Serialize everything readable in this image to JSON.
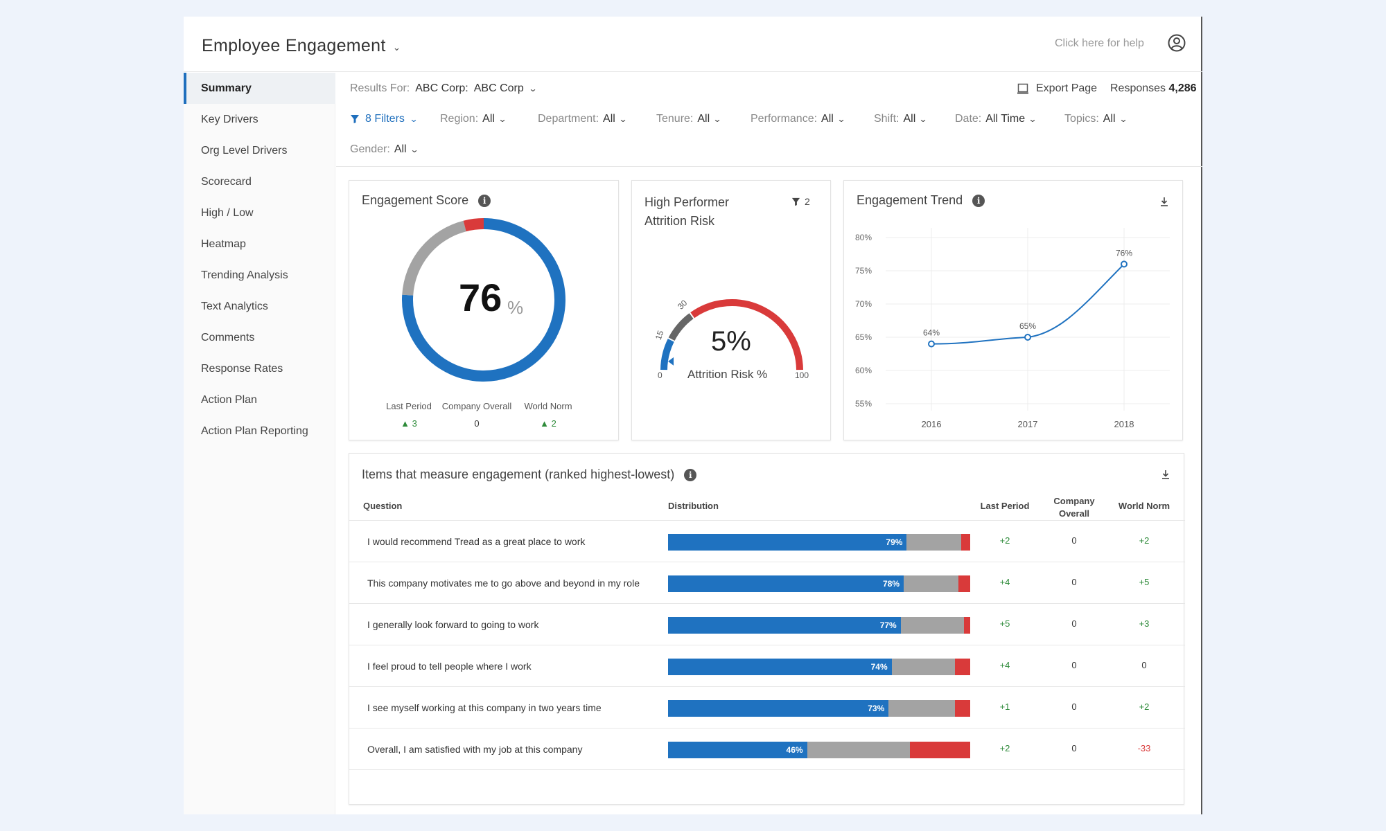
{
  "header": {
    "title": "Employee Engagement",
    "help_text": "Click here for help"
  },
  "sidebar": {
    "items": [
      {
        "label": "Summary",
        "active": true
      },
      {
        "label": "Key Drivers"
      },
      {
        "label": "Org Level Drivers"
      },
      {
        "label": "Scorecard"
      },
      {
        "label": "High / Low"
      },
      {
        "label": "Heatmap"
      },
      {
        "label": "Trending Analysis"
      },
      {
        "label": "Text Analytics"
      },
      {
        "label": "Comments"
      },
      {
        "label": "Response Rates"
      },
      {
        "label": "Action Plan"
      },
      {
        "label": "Action Plan Reporting"
      }
    ]
  },
  "filterbar": {
    "results_label": "Results For:",
    "results_value": "ABC Corp:  ABC Corp",
    "export_label": "Export Page",
    "responses_label": "Responses",
    "responses_value": "4,286",
    "filters_link": "8 Filters",
    "filters": [
      {
        "label": "Region:",
        "value": "All"
      },
      {
        "label": "Department:",
        "value": "All"
      },
      {
        "label": "Tenure:",
        "value": "All"
      },
      {
        "label": "Performance:",
        "value": "All"
      },
      {
        "label": "Shift:",
        "value": "All"
      },
      {
        "label": "Date:",
        "value": "All Time"
      },
      {
        "label": "Topics:",
        "value": "All"
      },
      {
        "label": "Gender:",
        "value": "All"
      }
    ]
  },
  "engagement_score": {
    "title": "Engagement Score",
    "value": "76",
    "unit": "%",
    "donut": {
      "positive": 76,
      "neutral": 20,
      "negative": 4
    },
    "stats": [
      {
        "label": "Last Period",
        "value": "3",
        "trend": "up"
      },
      {
        "label": "Company Overall",
        "value": "0",
        "trend": "none"
      },
      {
        "label": "World Norm",
        "value": "2",
        "trend": "up"
      }
    ],
    "colors": {
      "positive": "#1f72c0",
      "neutral": "#a3a3a3",
      "negative": "#d93a3a"
    }
  },
  "attrition": {
    "title_line1": "High Performer",
    "title_line2": "Attrition Risk",
    "filter_count": "2",
    "value": "5%",
    "label": "Attrition Risk %",
    "value_num": 5,
    "ticks": {
      "min": "0",
      "t1": "15",
      "t2": "30",
      "max": "100"
    }
  },
  "trend": {
    "title": "Engagement Trend"
  },
  "chart_data": {
    "type": "line",
    "x": [
      "2016",
      "2017",
      "2018"
    ],
    "series": [
      {
        "values": [
          64,
          65,
          76
        ]
      }
    ],
    "data_labels": [
      "64%",
      "65%",
      "76%"
    ],
    "ylim": [
      55,
      80
    ],
    "yticks": [
      "80%",
      "75%",
      "70%",
      "65%",
      "60%",
      "55%"
    ],
    "ytick_values": [
      80,
      75,
      70,
      65,
      60,
      55
    ],
    "grid": true
  },
  "items_table": {
    "title": "Items that measure engagement (ranked highest-lowest)",
    "headers": {
      "question": "Question",
      "distribution": "Distribution",
      "last_period": "Last Period",
      "company_overall_1": "Company",
      "company_overall_2": "Overall",
      "world_norm": "World Norm"
    },
    "rows": [
      {
        "question": "I would recommend Tread as a great place to work",
        "pos": 79,
        "neg": 3,
        "pos_label": "79%",
        "last_period": "+2",
        "company_overall": "0",
        "world_norm": "+2"
      },
      {
        "question": "This company motivates me to go above and beyond in my role",
        "pos": 78,
        "neg": 4,
        "pos_label": "78%",
        "last_period": "+4",
        "company_overall": "0",
        "world_norm": "+5"
      },
      {
        "question": "I generally look forward to going to work",
        "pos": 77,
        "neg": 2,
        "pos_label": "77%",
        "last_period": "+5",
        "company_overall": "0",
        "world_norm": "+3"
      },
      {
        "question": "I feel proud to tell people where I work",
        "pos": 74,
        "neg": 5,
        "pos_label": "74%",
        "last_period": "+4",
        "company_overall": "0",
        "world_norm": "0"
      },
      {
        "question": "I see myself working at this company in two years time",
        "pos": 73,
        "neg": 5,
        "pos_label": "73%",
        "last_period": "+1",
        "company_overall": "0",
        "world_norm": "+2"
      },
      {
        "question": "Overall, I am satisfied with my job at this company",
        "pos": 46,
        "neg": 20,
        "pos_label": "46%",
        "last_period": "+2",
        "company_overall": "0",
        "world_norm": "-33"
      }
    ]
  }
}
